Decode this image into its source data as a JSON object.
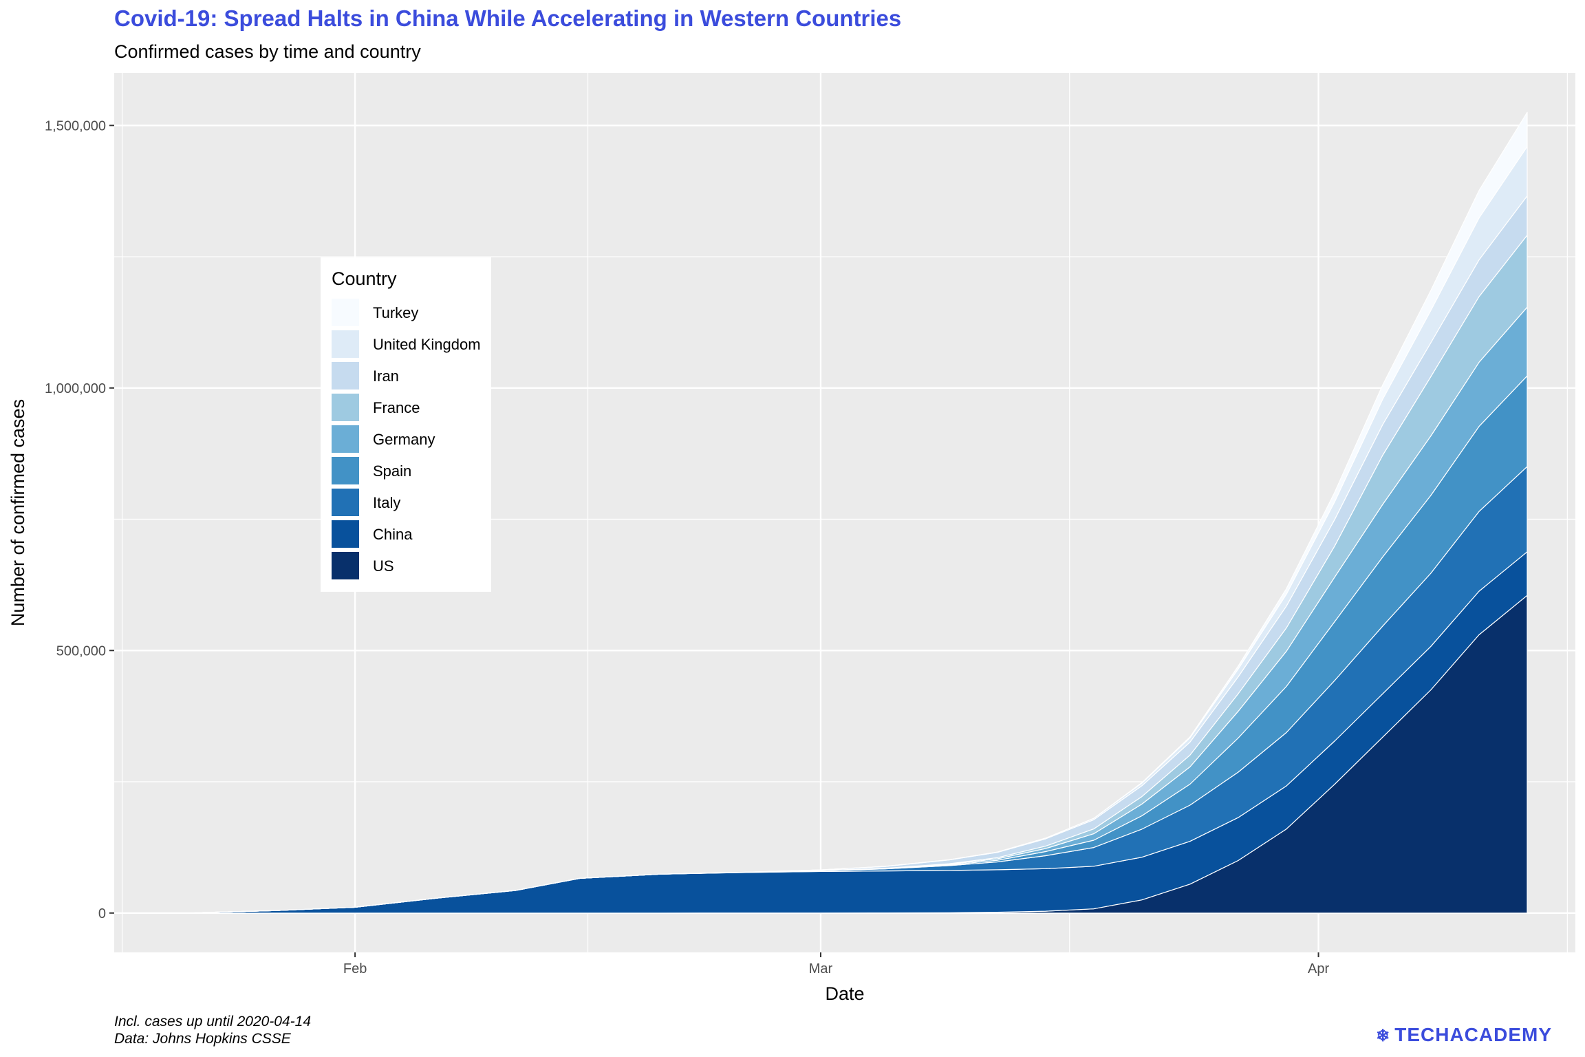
{
  "title": "Covid-19: Spread Halts in China While Accelerating in Western Countries",
  "subtitle": "Confirmed cases by time and country",
  "caption_line1": "Incl. cases up until 2020-04-14",
  "caption_line2": "Data: Johns Hopkins CSSE",
  "logo_text": "TECHACADEMY",
  "logo_icon": "snowflake-icon",
  "colors": {
    "title": "#3b4cdc",
    "panel": "#ebebeb",
    "grid": "#ffffff"
  },
  "chart_data": {
    "type": "area",
    "stacked": true,
    "xlabel": "Date",
    "ylabel": "Number of confirmed cases",
    "xlim": [
      "2020-01-17",
      "2020-04-17"
    ],
    "ylim": [
      -75000,
      1600000
    ],
    "x_ticks": [
      {
        "date": "2020-02-01",
        "label": "Feb"
      },
      {
        "date": "2020-03-01",
        "label": "Mar"
      },
      {
        "date": "2020-04-01",
        "label": "Apr"
      }
    ],
    "y_ticks": [
      {
        "value": 0,
        "label": "0"
      },
      {
        "value": 500000,
        "label": "500,000"
      },
      {
        "value": 1000000,
        "label": "1,000,000"
      },
      {
        "value": 1500000,
        "label": "1,500,000"
      }
    ],
    "legend_title": "Country",
    "legend_position": "left, inside panel",
    "x": [
      "2020-01-22",
      "2020-01-27",
      "2020-02-01",
      "2020-02-06",
      "2020-02-11",
      "2020-02-15",
      "2020-02-20",
      "2020-02-25",
      "2020-03-01",
      "2020-03-05",
      "2020-03-09",
      "2020-03-12",
      "2020-03-15",
      "2020-03-18",
      "2020-03-21",
      "2020-03-24",
      "2020-03-27",
      "2020-03-30",
      "2020-04-02",
      "2020-04-05",
      "2020-04-08",
      "2020-04-11",
      "2020-04-14"
    ],
    "series": [
      {
        "name": "US",
        "color": "#08306b",
        "values": [
          1,
          5,
          8,
          12,
          13,
          14,
          15,
          53,
          75,
          200,
          600,
          1600,
          3500,
          8000,
          25000,
          55000,
          100000,
          160000,
          245000,
          335000,
          425000,
          530000,
          605000
        ]
      },
      {
        "name": "China",
        "color": "#08519c",
        "values": [
          550,
          4500,
          11000,
          28000,
          43000,
          66000,
          74000,
          77000,
          79000,
          80000,
          80500,
          80800,
          81000,
          81100,
          81300,
          81500,
          81700,
          82000,
          82400,
          82600,
          82800,
          82900,
          83000
        ]
      },
      {
        "name": "Italy",
        "color": "#2171b5",
        "values": [
          0,
          0,
          2,
          2,
          3,
          3,
          3,
          300,
          1700,
          3800,
          9200,
          15000,
          24700,
          35700,
          53500,
          69000,
          86500,
          101700,
          115200,
          128900,
          139400,
          152000,
          162500
        ]
      },
      {
        "name": "Spain",
        "color": "#4292c6",
        "values": [
          0,
          0,
          1,
          1,
          2,
          2,
          2,
          10,
          80,
          280,
          1200,
          3100,
          7800,
          13900,
          25400,
          40000,
          65000,
          87900,
          112000,
          131600,
          148200,
          161900,
          172500
        ]
      },
      {
        "name": "Germany",
        "color": "#6baed6",
        "values": [
          0,
          1,
          7,
          12,
          16,
          16,
          16,
          20,
          130,
          500,
          1200,
          2700,
          5800,
          12300,
          22200,
          32900,
          50900,
          66900,
          84800,
          100100,
          113300,
          122200,
          131000
        ]
      },
      {
        "name": "France",
        "color": "#9ecae1",
        "values": [
          0,
          3,
          6,
          6,
          11,
          12,
          12,
          14,
          130,
          420,
          1200,
          2300,
          4500,
          9100,
          14300,
          22300,
          33400,
          44500,
          59100,
          93800,
          112900,
          125000,
          137000
        ]
      },
      {
        "name": "Iran",
        "color": "#c6dbef",
        "values": [
          0,
          0,
          0,
          0,
          0,
          0,
          5,
          95,
          980,
          3500,
          7200,
          10000,
          13900,
          17400,
          20600,
          24800,
          32300,
          41500,
          50500,
          58200,
          64600,
          70000,
          74900
        ]
      },
      {
        "name": "United Kingdom",
        "color": "#deebf7",
        "values": [
          0,
          0,
          2,
          3,
          8,
          9,
          9,
          13,
          36,
          115,
          320,
          590,
          1400,
          2700,
          5000,
          8100,
          14700,
          22500,
          33700,
          48400,
          61500,
          79900,
          94000
        ]
      },
      {
        "name": "Turkey",
        "color": "#f7fbff",
        "values": [
          0,
          0,
          0,
          0,
          0,
          0,
          0,
          0,
          0,
          0,
          0,
          1,
          6,
          98,
          950,
          1900,
          5700,
          10800,
          18100,
          27100,
          38200,
          52200,
          65100
        ]
      }
    ]
  }
}
